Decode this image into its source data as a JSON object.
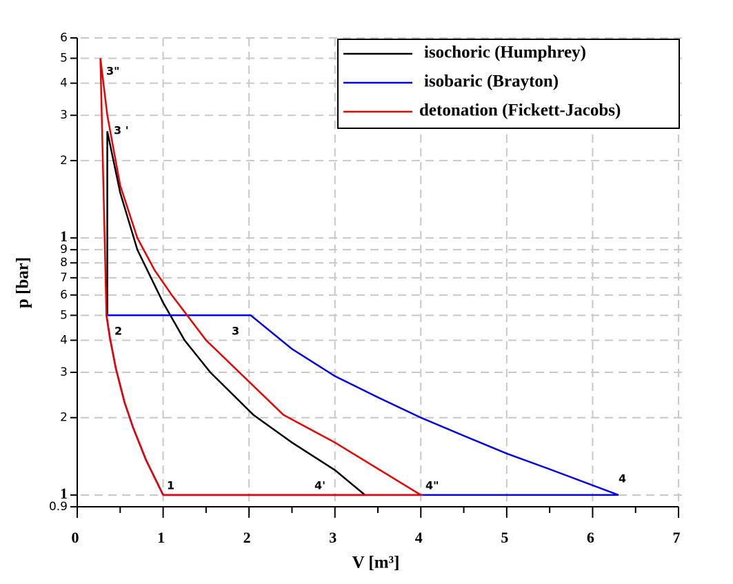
{
  "chart_data": {
    "type": "line",
    "x_label": "V [m³]",
    "y_label": "p [bar]",
    "xlim": [
      0,
      7
    ],
    "xticks": [
      0,
      1,
      2,
      3,
      4,
      5,
      6,
      7
    ],
    "ylim": [
      0.9,
      60
    ],
    "log_y": true,
    "yticks": [
      0.9,
      1,
      2,
      3,
      4,
      5,
      6,
      7,
      8,
      9,
      {
        "value": 10,
        "label": "1"
      },
      {
        "value": 20,
        "label": "2"
      },
      {
        "value": 30,
        "label": "3"
      },
      {
        "value": 40,
        "label": "4"
      },
      {
        "value": 50,
        "label": "5"
      },
      {
        "value": 60,
        "label": "6"
      }
    ],
    "grid": true,
    "legend": "upper right",
    "series": [
      {
        "name": "isochoric (Humphrey)",
        "color": "#000000",
        "x": [
          1,
          0.8,
          0.65,
          0.55,
          0.45,
          0.38,
          0.34,
          0.35,
          0.35,
          0.5,
          0.7,
          1,
          1.25,
          1.55,
          2.05,
          2.5,
          3,
          3.35,
          1
        ],
        "values": [
          1,
          1.37,
          1.83,
          2.3,
          3.1,
          4.1,
          5,
          5,
          26,
          15,
          9,
          5.6,
          4,
          3,
          2.05,
          1.6,
          1.25,
          1,
          1
        ]
      },
      {
        "name": "isobaric (Brayton)",
        "color": "#0000ee",
        "x": [
          1,
          0.8,
          0.65,
          0.55,
          0.45,
          0.38,
          0.34,
          2.02,
          2.5,
          3,
          3.5,
          4,
          4.5,
          5,
          5.5,
          6.3,
          1
        ],
        "values": [
          1,
          1.37,
          1.83,
          2.3,
          3.1,
          4.1,
          5,
          5,
          3.7,
          2.9,
          2.4,
          2,
          1.7,
          1.45,
          1.26,
          1,
          1
        ]
      },
      {
        "name": "detonation (Fickett-Jacobs)",
        "color": "#ee0000",
        "x": [
          1,
          0.8,
          0.65,
          0.55,
          0.45,
          0.38,
          0.34,
          0.27,
          0.35,
          0.5,
          0.7,
          0.9,
          1.1,
          1.5,
          2.4,
          3,
          4,
          1
        ],
        "values": [
          1,
          1.37,
          1.83,
          2.3,
          3.1,
          4.1,
          5,
          50,
          30,
          16,
          10,
          7.5,
          6,
          4,
          2.05,
          1.6,
          1,
          1
        ]
      }
    ],
    "annotations": [
      "3\"",
      "3 '",
      "2",
      "3",
      "1",
      "4'",
      "4\"",
      "4"
    ]
  }
}
